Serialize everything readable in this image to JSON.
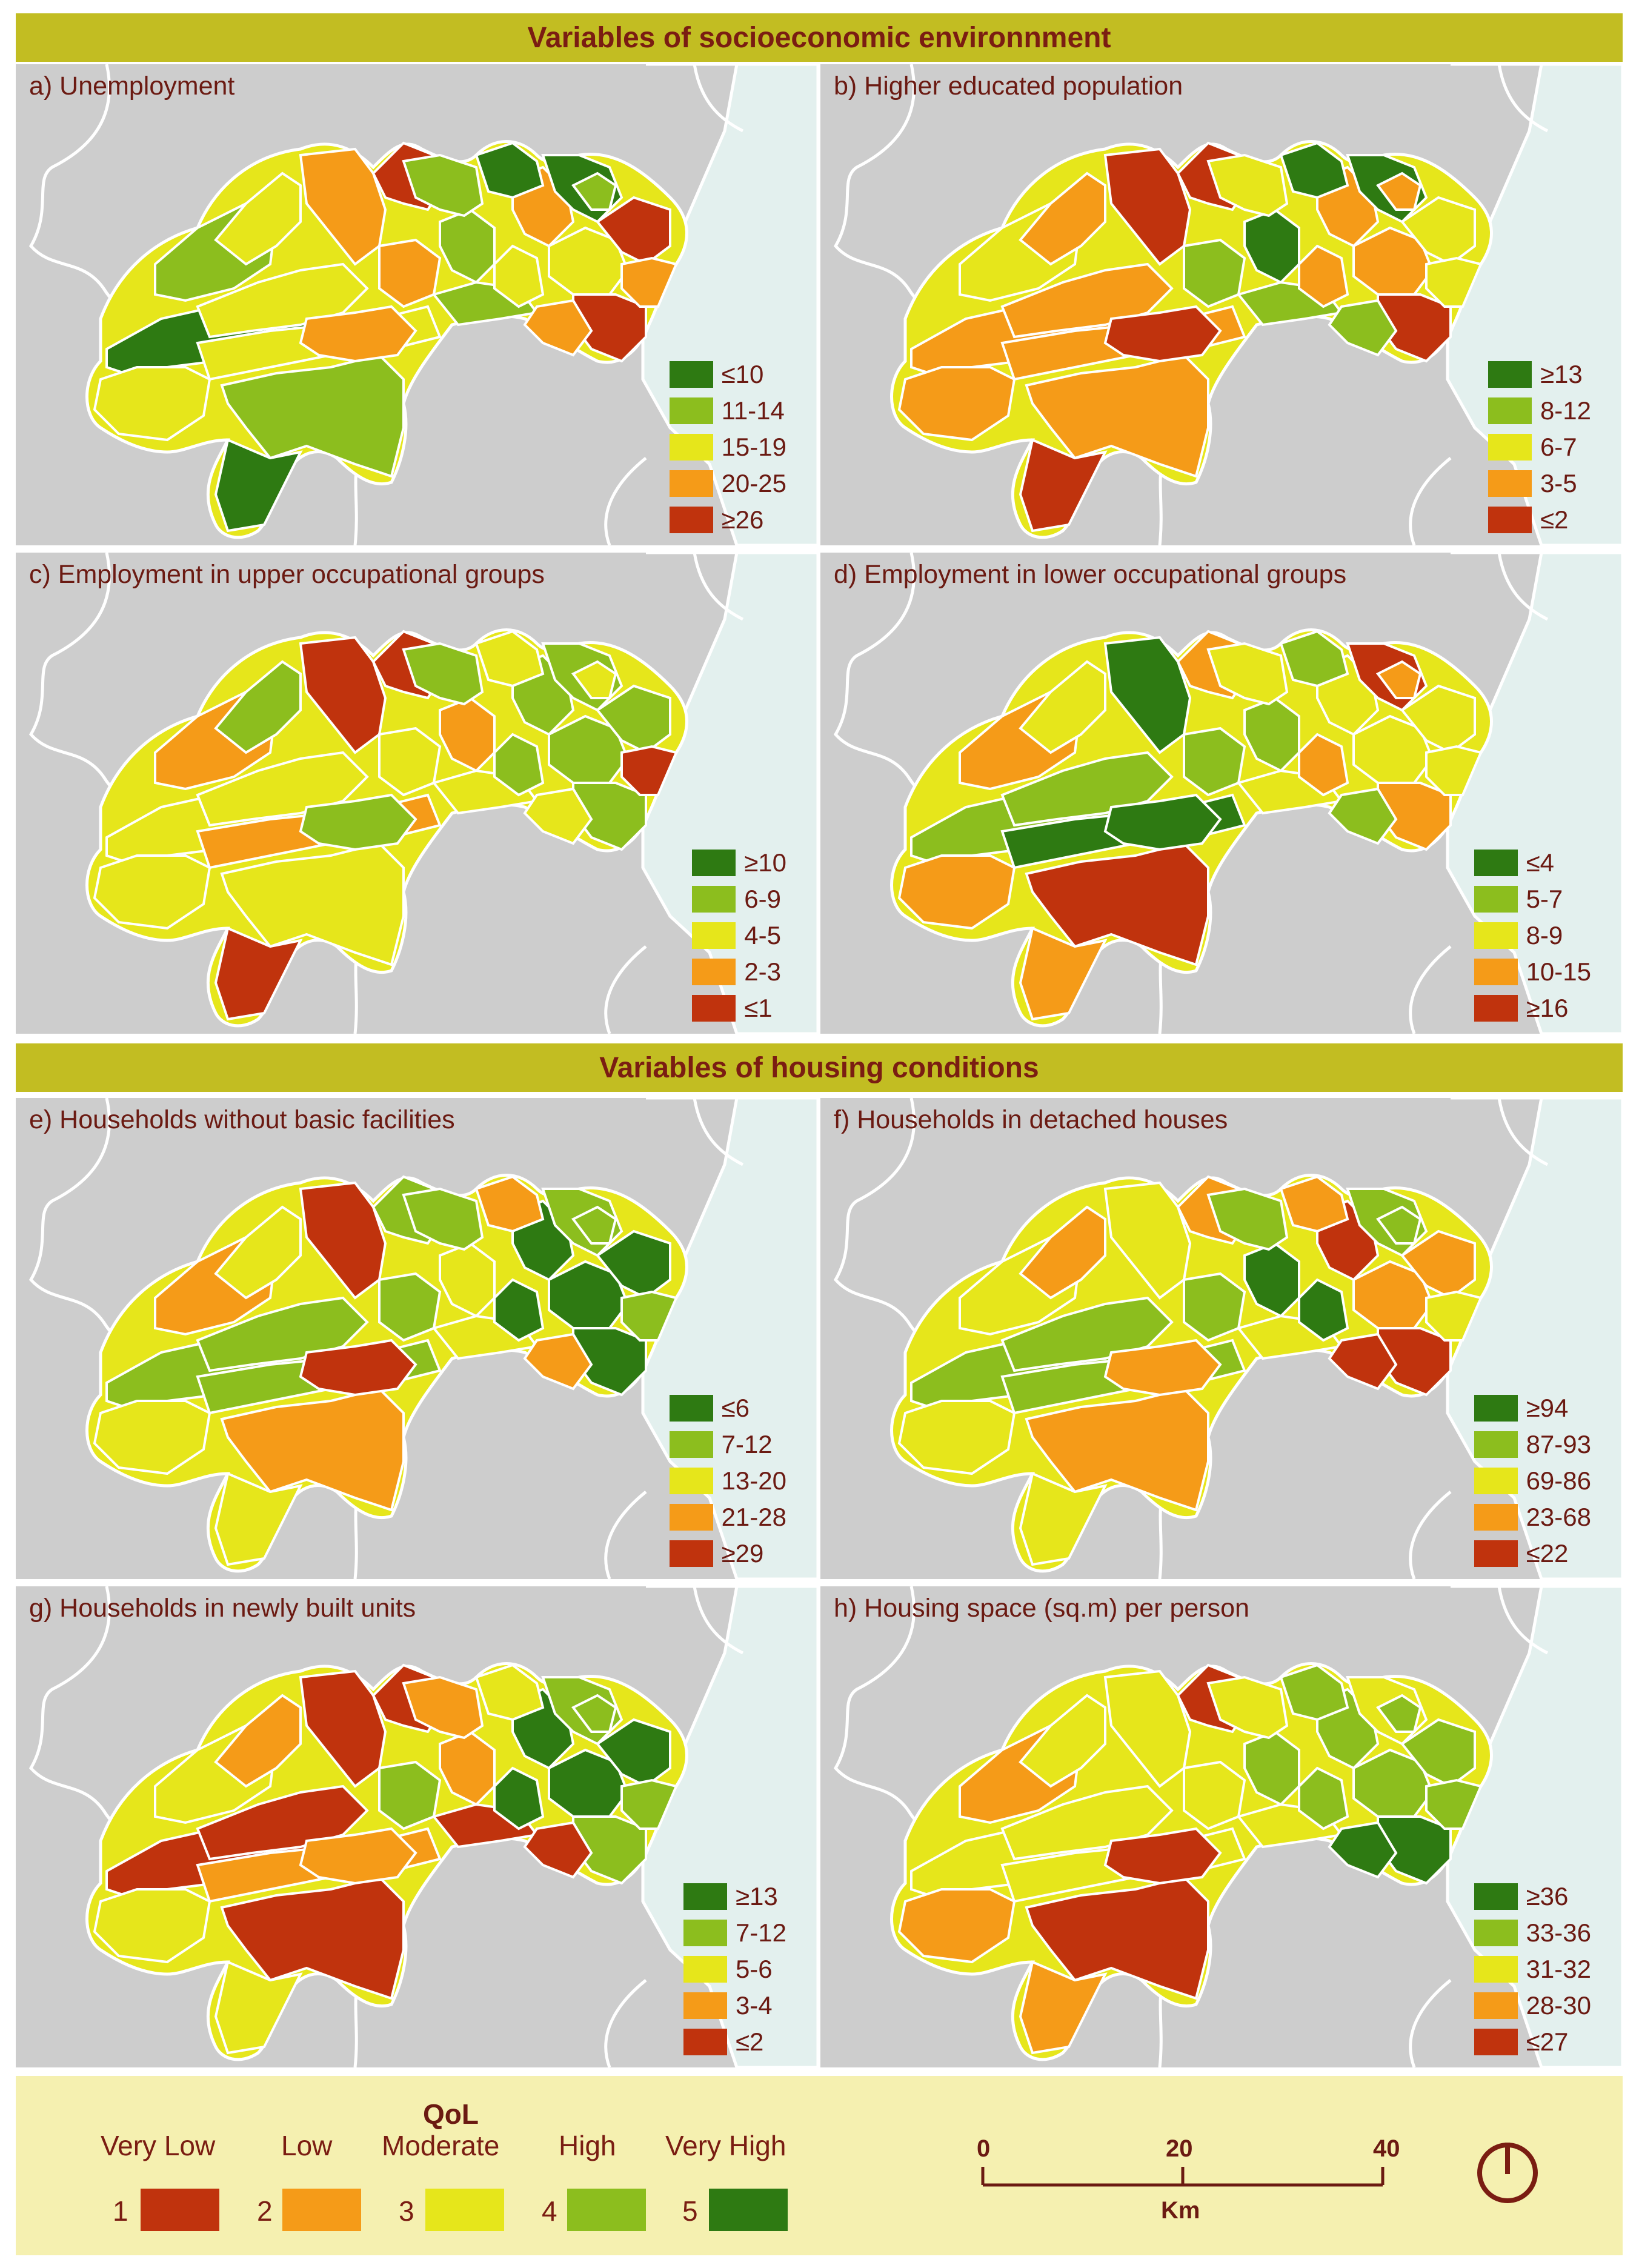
{
  "sections": {
    "socio": "Variables of socioeconomic environnment",
    "housing": "Variables of housing conditions"
  },
  "colors": {
    "c1": "#c0330d",
    "c2": "#f59b18",
    "c3": "#e6e61b",
    "c4": "#8cbe1e",
    "c5": "#2e7a12",
    "land": "#cdcdcd",
    "sea": "#e3f0ee",
    "banner": "#c2bd22",
    "footer": "#f5f0b0"
  },
  "panels": [
    {
      "title": "a) Unemployment",
      "legend": [
        [
          "≤10",
          "c5"
        ],
        [
          "11-14",
          "c4"
        ],
        [
          "15-19",
          "c3"
        ],
        [
          "20-25",
          "c2"
        ],
        [
          "≥26",
          "c1"
        ]
      ],
      "regions": [
        "c5",
        "c4",
        "c3",
        "c2",
        "c1",
        "c3",
        "c4",
        "c5",
        "c2",
        "c3",
        "c1",
        "c4",
        "c5",
        "c2",
        "c4",
        "c4",
        "c3",
        "c2",
        "c3",
        "c5",
        "c1",
        "c2",
        "c2",
        "c3",
        "c4"
      ]
    },
    {
      "title": "b) Higher educated population",
      "legend": [
        [
          "≥13",
          "c5"
        ],
        [
          "8-12",
          "c4"
        ],
        [
          "6-7",
          "c3"
        ],
        [
          "3-5",
          "c2"
        ],
        [
          "≤2",
          "c1"
        ]
      ],
      "regions": [
        "c2",
        "c3",
        "c2",
        "c1",
        "c1",
        "c2",
        "c2",
        "c1",
        "c2",
        "c2",
        "c1",
        "c5",
        "c5",
        "c4",
        "c4",
        "c3",
        "c2",
        "c1",
        "c2",
        "c5",
        "c3",
        "c3",
        "c4",
        "c2",
        "c2"
      ]
    },
    {
      "title": "c) Employment in upper occupational groups",
      "legend": [
        [
          "≥10",
          "c5"
        ],
        [
          "6-9",
          "c4"
        ],
        [
          "4-5",
          "c3"
        ],
        [
          "2-3",
          "c2"
        ],
        [
          "≤1",
          "c1"
        ]
      ],
      "regions": [
        "c3",
        "c2",
        "c3",
        "c1",
        "c1",
        "c2",
        "c3",
        "c1",
        "c4",
        "c4",
        "c4",
        "c2",
        "c3",
        "c3",
        "c3",
        "c4",
        "c4",
        "c4",
        "c3",
        "c4",
        "c4",
        "c1",
        "c3",
        "c4",
        "c3"
      ]
    },
    {
      "title": "d) Employment in lower occupational groups",
      "legend": [
        [
          "≤4",
          "c5"
        ],
        [
          "5-7",
          "c4"
        ],
        [
          "8-9",
          "c3"
        ],
        [
          "10-15",
          "c2"
        ],
        [
          "≥16",
          "c1"
        ]
      ],
      "regions": [
        "c4",
        "c2",
        "c4",
        "c5",
        "c2",
        "c5",
        "c1",
        "c2",
        "c3",
        "c3",
        "c2",
        "c4",
        "c4",
        "c4",
        "c3",
        "c3",
        "c2",
        "c5",
        "c2",
        "c1",
        "c3",
        "c3",
        "c4",
        "c3",
        "c2"
      ]
    },
    {
      "title": "e) Households without basic facilities",
      "legend": [
        [
          "≤6",
          "c5"
        ],
        [
          "7-12",
          "c4"
        ],
        [
          "13-20",
          "c3"
        ],
        [
          "21-28",
          "c2"
        ],
        [
          "≥29",
          "c1"
        ]
      ],
      "regions": [
        "c4",
        "c2",
        "c4",
        "c1",
        "c4",
        "c4",
        "c2",
        "c3",
        "c5",
        "c5",
        "c5",
        "c3",
        "c2",
        "c4",
        "c3",
        "c4",
        "c5",
        "c1",
        "c3",
        "c4",
        "c5",
        "c4",
        "c2",
        "c3",
        "c4"
      ]
    },
    {
      "title": "f) Households in detached houses",
      "legend": [
        [
          "≥94",
          "c5"
        ],
        [
          "87-93",
          "c4"
        ],
        [
          "69-86",
          "c3"
        ],
        [
          "23-68",
          "c2"
        ],
        [
          "≤22",
          "c1"
        ]
      ],
      "regions": [
        "c4",
        "c3",
        "c4",
        "c3",
        "c2",
        "c4",
        "c2",
        "c3",
        "c1",
        "c2",
        "c1",
        "c5",
        "c2",
        "c4",
        "c3",
        "c4",
        "c5",
        "c2",
        "c3",
        "c4",
        "c2",
        "c3",
        "c1",
        "c2",
        "c4"
      ]
    },
    {
      "title": "g) Households in newly built units",
      "legend": [
        [
          "≥13",
          "c5"
        ],
        [
          "7-12",
          "c4"
        ],
        [
          "5-6",
          "c3"
        ],
        [
          "3-4",
          "c2"
        ],
        [
          "≤2",
          "c1"
        ]
      ],
      "regions": [
        "c1",
        "c3",
        "c1",
        "c1",
        "c1",
        "c2",
        "c1",
        "c3",
        "c5",
        "c5",
        "c4",
        "c2",
        "c3",
        "c4",
        "c1",
        "c2",
        "c5",
        "c2",
        "c3",
        "c4",
        "c5",
        "c4",
        "c1",
        "c2",
        "c4"
      ]
    },
    {
      "title": "h) Housing space (sq.m) per person",
      "legend": [
        [
          "≥36",
          "c5"
        ],
        [
          "33-36",
          "c4"
        ],
        [
          "31-32",
          "c3"
        ],
        [
          "28-30",
          "c2"
        ],
        [
          "≤27",
          "c1"
        ]
      ],
      "regions": [
        "c3",
        "c2",
        "c3",
        "c3",
        "c1",
        "c3",
        "c1",
        "c2",
        "c4",
        "c4",
        "c5",
        "c4",
        "c4",
        "c3",
        "c3",
        "c3",
        "c4",
        "c1",
        "c2",
        "c3",
        "c4",
        "c4",
        "c5",
        "c3",
        "c4"
      ]
    }
  ],
  "qol": {
    "title": "QoL",
    "classes": [
      {
        "num": "1",
        "label": "Very Low",
        "color": "c1"
      },
      {
        "num": "2",
        "label": "Low",
        "color": "c2"
      },
      {
        "num": "3",
        "label": "Moderate",
        "color": "c3"
      },
      {
        "num": "4",
        "label": "High",
        "color": "c4"
      },
      {
        "num": "5",
        "label": "Very High",
        "color": "c5"
      }
    ]
  },
  "scale": {
    "ticks": [
      "0",
      "20",
      "40"
    ],
    "unit": "Km"
  },
  "compass": "north-arrow-icon"
}
